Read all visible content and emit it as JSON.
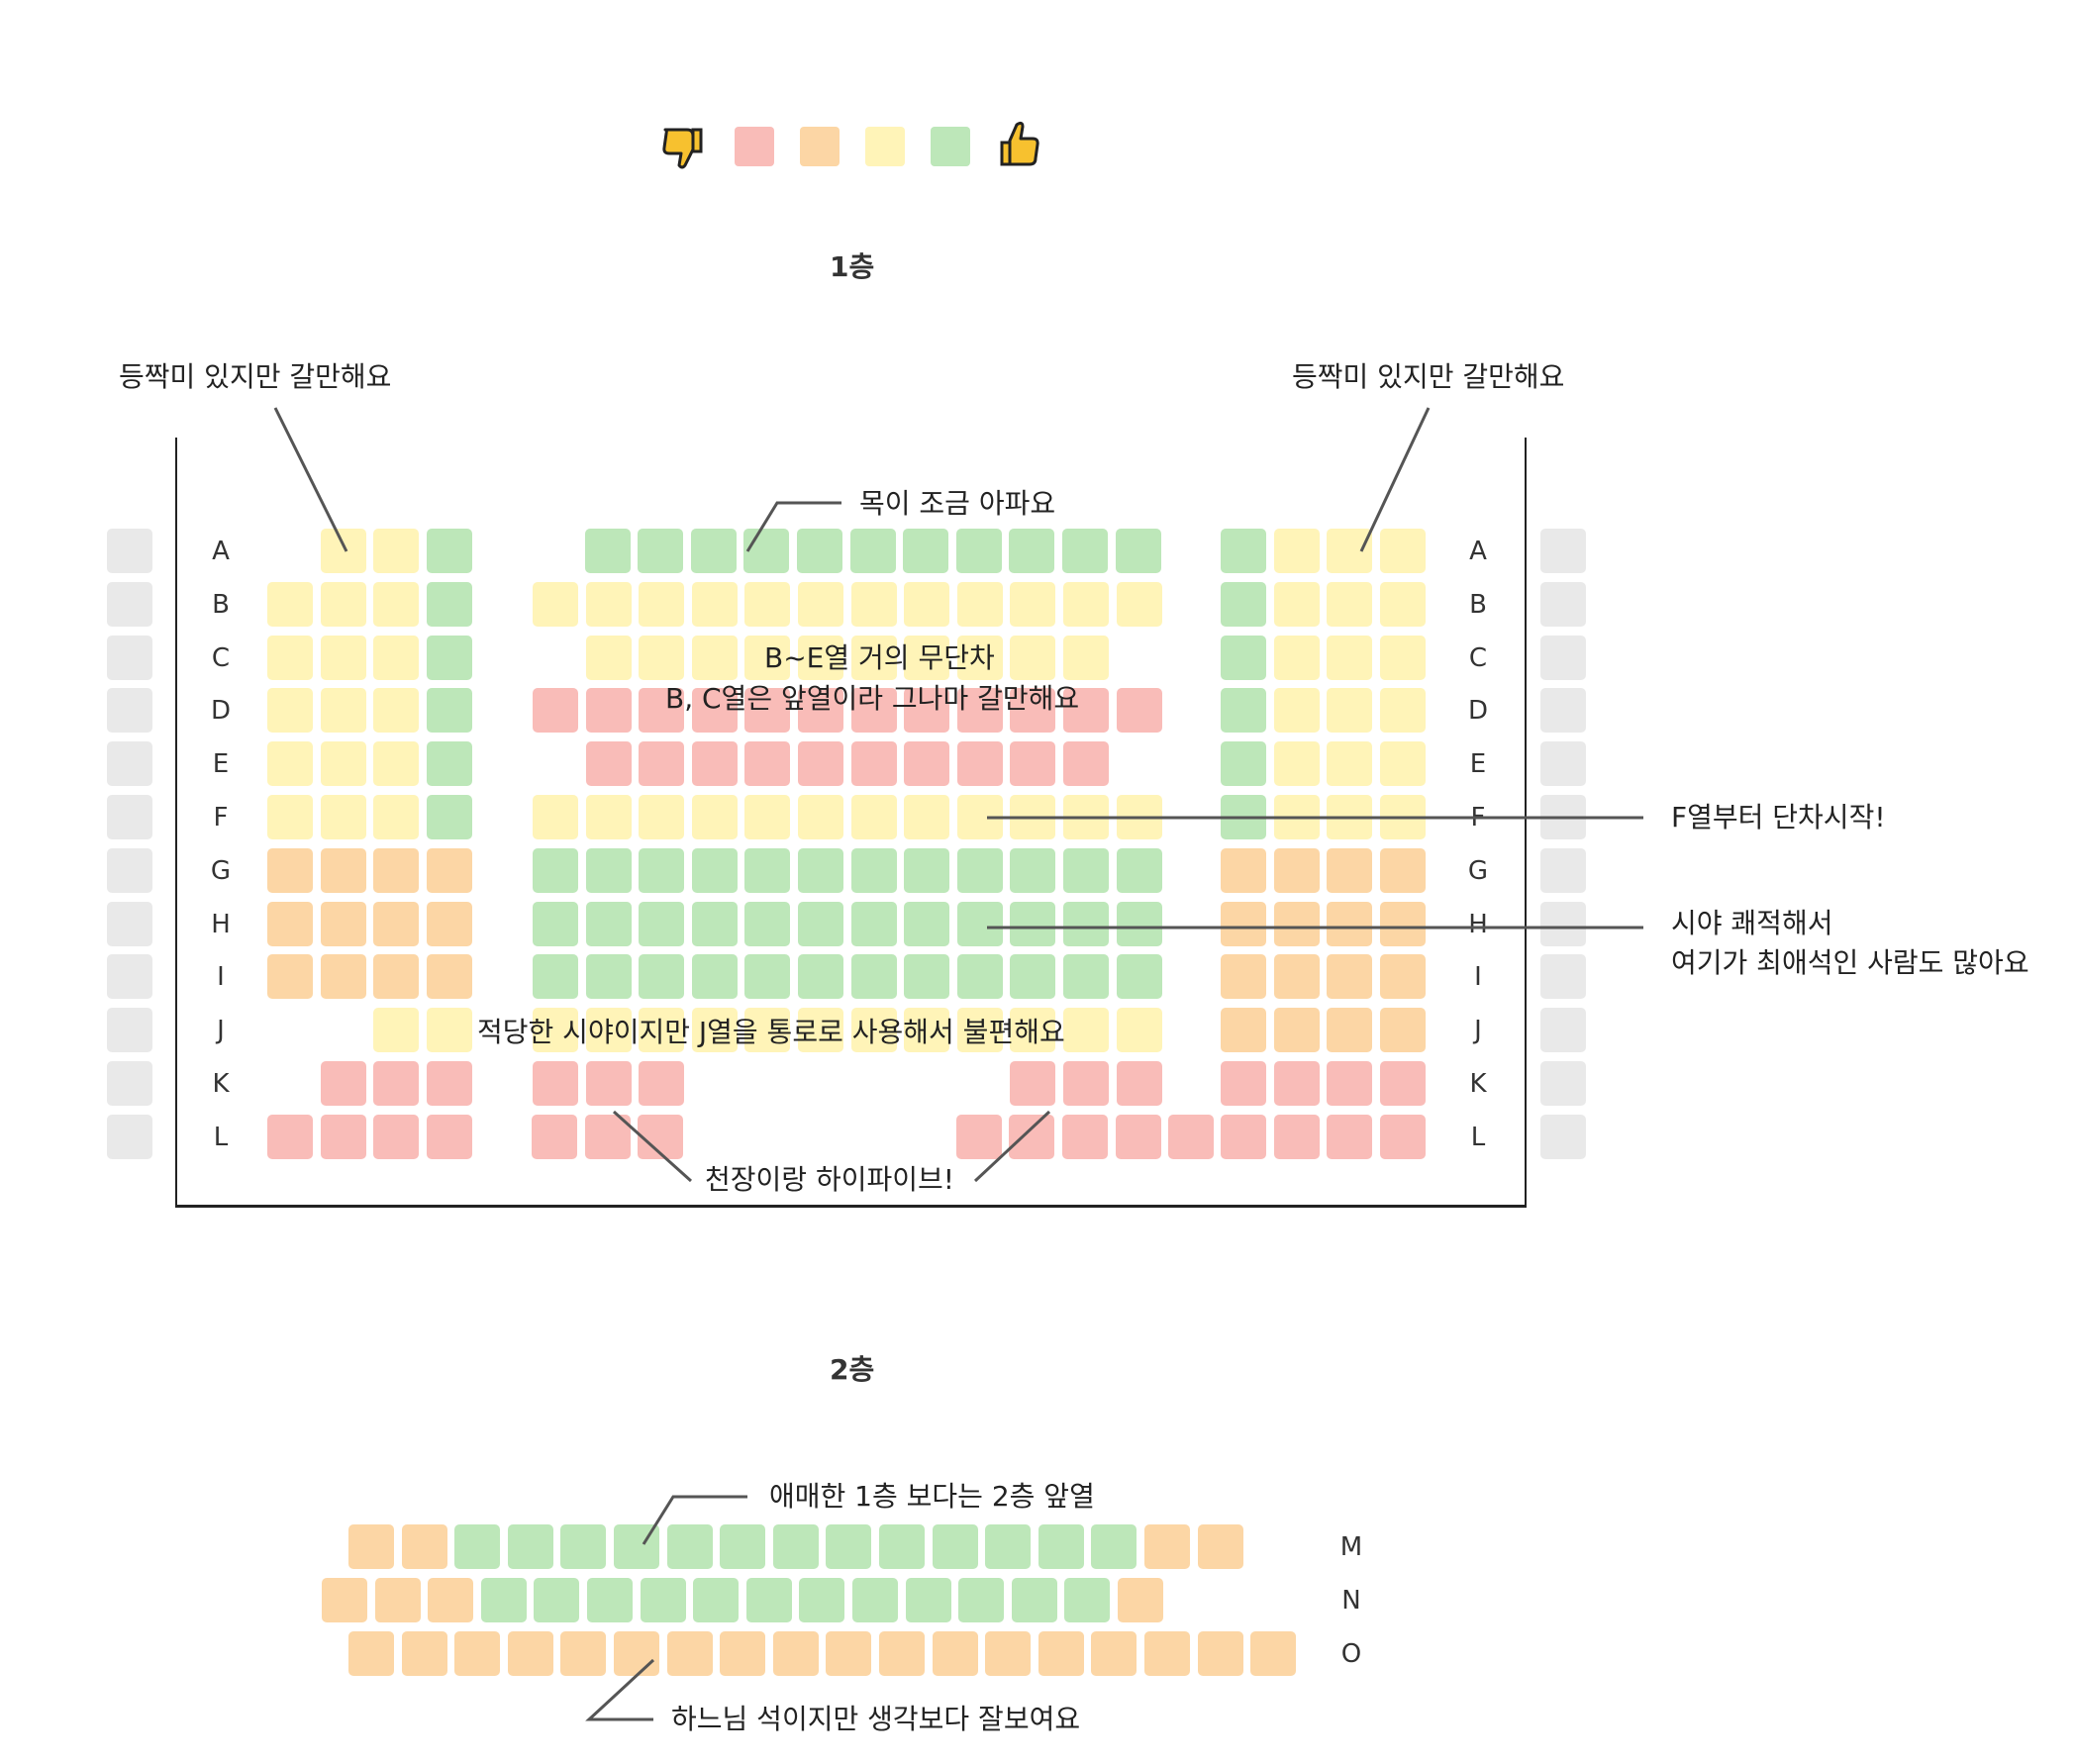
{
  "colors": {
    "bad": "#f9bcb8",
    "meh": "#fcd6a5",
    "ok": "#fff4b8",
    "good": "#bde7b9",
    "off": "#e9e9e9",
    "thumb_fill": "#f7c12f"
  },
  "legend": {
    "icons": [
      "thumbs-down-icon",
      "thumbs-up-icon"
    ],
    "levels": [
      "bad",
      "meh",
      "ok",
      "good"
    ]
  },
  "floor1": {
    "title": "1층",
    "row_letters": [
      "A",
      "B",
      "C",
      "D",
      "E",
      "F",
      "G",
      "H",
      "I",
      "J",
      "K",
      "L"
    ],
    "rows": [
      {
        "left": [
          "",
          "ok",
          "ok",
          "good"
        ],
        "center": [
          "",
          "good",
          "good",
          "good",
          "good",
          "good",
          "good",
          "good",
          "good",
          "good",
          "good",
          "good",
          ""
        ],
        "right": [
          "good",
          "ok",
          "ok",
          "ok"
        ]
      },
      {
        "left": [
          "ok",
          "ok",
          "ok",
          "good"
        ],
        "center": [
          "ok",
          "ok",
          "ok",
          "ok",
          "ok",
          "ok",
          "ok",
          "ok",
          "ok",
          "ok",
          "ok",
          "ok"
        ],
        "right": [
          "good",
          "ok",
          "ok",
          "ok"
        ]
      },
      {
        "left": [
          "ok",
          "ok",
          "ok",
          "good"
        ],
        "center": [
          "",
          "ok",
          "ok",
          "ok",
          "ok",
          "ok",
          "ok",
          "ok",
          "ok",
          "ok",
          "ok",
          ""
        ],
        "right": [
          "good",
          "ok",
          "ok",
          "ok"
        ]
      },
      {
        "left": [
          "ok",
          "ok",
          "ok",
          "good"
        ],
        "center": [
          "bad",
          "bad",
          "bad",
          "bad",
          "bad",
          "bad",
          "bad",
          "bad",
          "bad",
          "bad",
          "bad",
          "bad"
        ],
        "right": [
          "good",
          "ok",
          "ok",
          "ok"
        ]
      },
      {
        "left": [
          "ok",
          "ok",
          "ok",
          "good"
        ],
        "center": [
          "",
          "bad",
          "bad",
          "bad",
          "bad",
          "bad",
          "bad",
          "bad",
          "bad",
          "bad",
          "bad",
          ""
        ],
        "right": [
          "good",
          "ok",
          "ok",
          "ok"
        ]
      },
      {
        "left": [
          "ok",
          "ok",
          "ok",
          "good"
        ],
        "center": [
          "ok",
          "ok",
          "ok",
          "ok",
          "ok",
          "ok",
          "ok",
          "ok",
          "ok",
          "ok",
          "ok",
          "ok"
        ],
        "right": [
          "good",
          "ok",
          "ok",
          "ok"
        ]
      },
      {
        "left": [
          "meh",
          "meh",
          "meh",
          "meh"
        ],
        "center": [
          "good",
          "good",
          "good",
          "good",
          "good",
          "good",
          "good",
          "good",
          "good",
          "good",
          "good",
          "good"
        ],
        "right": [
          "meh",
          "meh",
          "meh",
          "meh"
        ]
      },
      {
        "left": [
          "meh",
          "meh",
          "meh",
          "meh"
        ],
        "center": [
          "good",
          "good",
          "good",
          "good",
          "good",
          "good",
          "good",
          "good",
          "good",
          "good",
          "good",
          "good"
        ],
        "right": [
          "meh",
          "meh",
          "meh",
          "meh"
        ]
      },
      {
        "left": [
          "meh",
          "meh",
          "meh",
          "meh"
        ],
        "center": [
          "good",
          "good",
          "good",
          "good",
          "good",
          "good",
          "good",
          "good",
          "good",
          "good",
          "good",
          "good"
        ],
        "right": [
          "meh",
          "meh",
          "meh",
          "meh"
        ]
      },
      {
        "left": [
          "",
          "",
          "ok",
          "ok"
        ],
        "center": [
          "ok",
          "ok",
          "ok",
          "ok",
          "ok",
          "ok",
          "ok",
          "ok",
          "ok",
          "ok",
          "ok",
          "ok"
        ],
        "right": [
          "meh",
          "meh",
          "meh",
          "meh"
        ]
      },
      {
        "left": [
          "",
          "bad",
          "bad",
          "bad"
        ],
        "center": [
          "bad",
          "bad",
          "bad",
          "",
          "",
          "",
          "",
          "",
          "",
          "bad",
          "bad",
          "bad"
        ],
        "right": [
          "bad",
          "bad",
          "bad",
          "bad"
        ]
      },
      {
        "left": [
          "bad",
          "bad",
          "bad",
          "bad"
        ],
        "center": [
          "bad",
          "bad",
          "bad",
          "",
          "",
          "",
          "",
          "",
          "bad",
          "bad",
          "bad",
          "bad",
          "bad"
        ],
        "right": [
          "bad",
          "bad",
          "bad",
          "bad"
        ]
      }
    ],
    "annotations": {
      "side_left": "등짝미 있지만 갈만해요",
      "side_right": "등짝미 있지만 갈만해요",
      "row_a": "목이 조금 아파요",
      "be_line1": "B~E열 거의 무단차",
      "be_line2": "B, C열은 앞열이라 그나마 갈만해요",
      "f_row": "F열부터 단차시작!",
      "h_line1": "시야 쾌적해서",
      "h_line2": "여기가 최애석인 사람도 많아요",
      "j_row": "적당한 시야이지만 J열을 통로로 사용해서 불편해요",
      "ceiling": "천장이랑 하이파이브!"
    }
  },
  "floor2": {
    "title": "2층",
    "row_letters": [
      "M",
      "N",
      "O"
    ],
    "rows": [
      [
        "meh",
        "meh",
        "good",
        "good",
        "good",
        "good",
        "good",
        "good",
        "good",
        "good",
        "good",
        "good",
        "good",
        "good",
        "good",
        "meh",
        "meh"
      ],
      [
        "meh",
        "meh",
        "meh",
        "good",
        "good",
        "good",
        "good",
        "good",
        "good",
        "good",
        "good",
        "good",
        "good",
        "good",
        "good",
        "meh"
      ],
      [
        "meh",
        "meh",
        "meh",
        "meh",
        "meh",
        "meh",
        "meh",
        "meh",
        "meh",
        "meh",
        "meh",
        "meh",
        "meh",
        "meh",
        "meh",
        "meh",
        "meh",
        "meh"
      ]
    ],
    "annotations": {
      "m_row": "애매한 1층 보다는 2층 앞열",
      "o_row": "하느님 석이지만 생각보다 잘보여요"
    }
  }
}
